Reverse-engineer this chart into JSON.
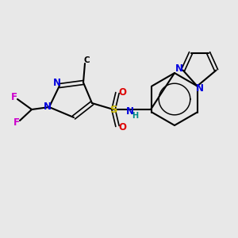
{
  "background_color": "#e8e8e8",
  "bond_color": "#000000",
  "bond_lw": 1.5,
  "colors": {
    "N": "#0000dd",
    "O": "#dd0000",
    "F": "#cc00cc",
    "S": "#ccbb00",
    "NH": "#008888",
    "C": "#000000"
  },
  "font_size": 8.5,
  "font_size_small": 7.5
}
